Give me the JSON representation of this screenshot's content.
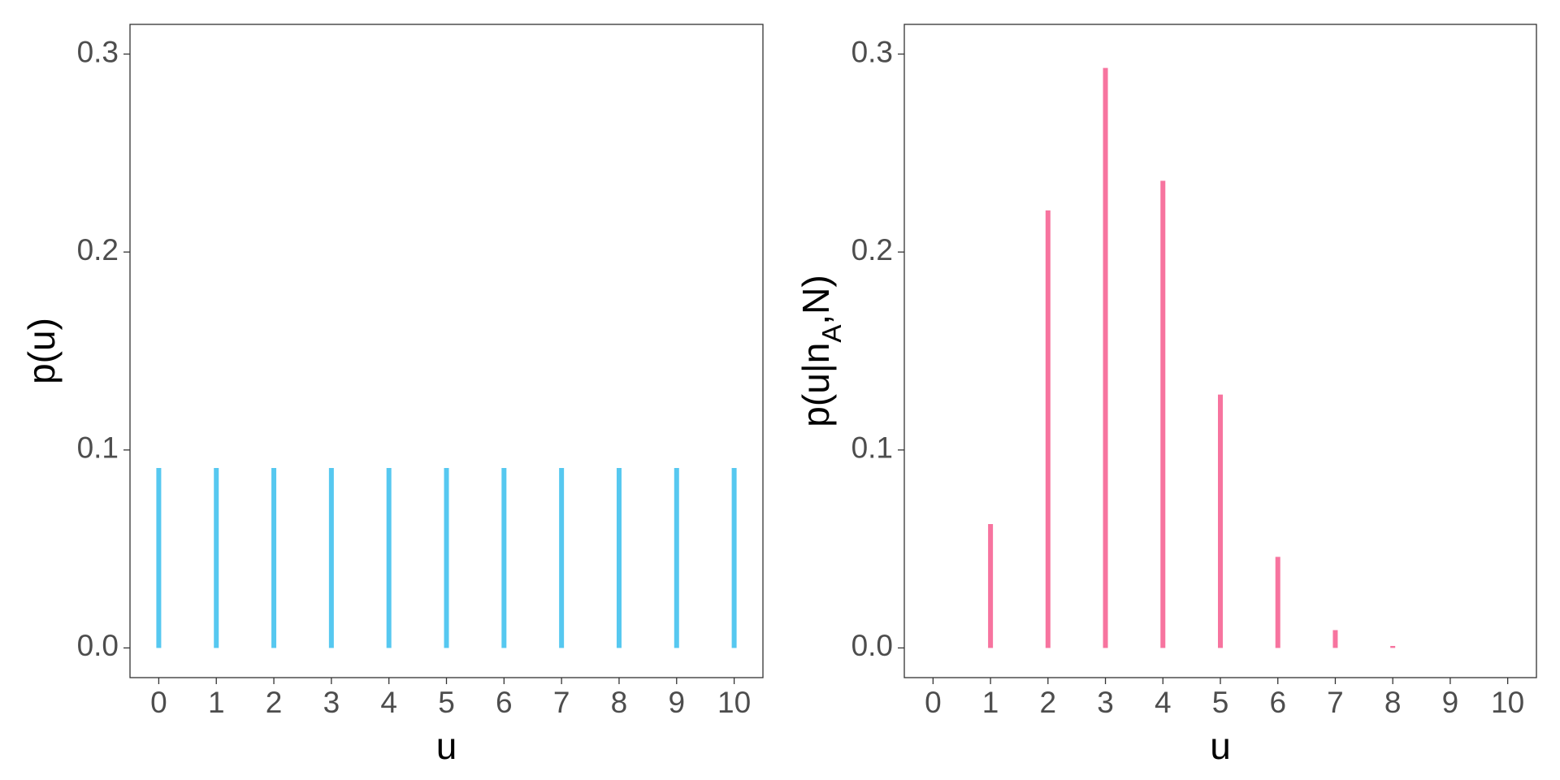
{
  "chart_data": [
    {
      "type": "bar",
      "x_label": "u",
      "y_label_parts": [
        "p(u)"
      ],
      "x": [
        0,
        1,
        2,
        3,
        4,
        5,
        6,
        7,
        8,
        9,
        10
      ],
      "values": [
        0.0909,
        0.0909,
        0.0909,
        0.0909,
        0.0909,
        0.0909,
        0.0909,
        0.0909,
        0.0909,
        0.0909,
        0.0909
      ],
      "color": "#56c8f0",
      "xlim": [
        -0.5,
        10.5
      ],
      "xticks": [
        0,
        1,
        2,
        3,
        4,
        5,
        6,
        7,
        8,
        9,
        10
      ],
      "ylim": [
        -0.015,
        0.315
      ],
      "yticks": [
        {
          "value": 0,
          "label": "0.0"
        },
        0.1,
        0.2,
        0.3
      ]
    },
    {
      "type": "bar",
      "x_label": "u",
      "y_label_parts": [
        "p(u|n",
        "A",
        ",N)"
      ],
      "x": [
        0,
        1,
        2,
        3,
        4,
        5,
        6,
        7,
        8,
        9,
        10
      ],
      "values": [
        0,
        0.0626,
        0.221,
        0.293,
        0.236,
        0.128,
        0.046,
        0.009,
        0.001,
        0,
        0
      ],
      "color": "#f7749f",
      "xlim": [
        -0.5,
        10.5
      ],
      "xticks": [
        0,
        1,
        2,
        3,
        4,
        5,
        6,
        7,
        8,
        9,
        10
      ],
      "ylim": [
        -0.015,
        0.315
      ],
      "yticks": [
        {
          "value": 0,
          "label": "0.0"
        },
        0.1,
        0.2,
        0.3
      ]
    }
  ]
}
